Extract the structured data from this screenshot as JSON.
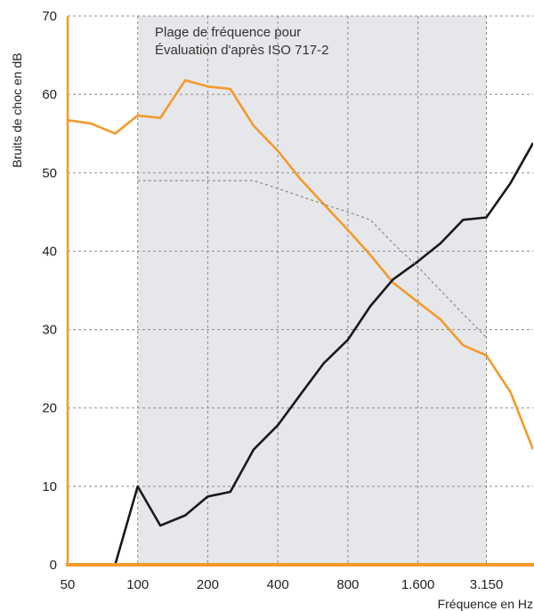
{
  "chart_data": {
    "type": "line",
    "title": "",
    "xlabel": "Fréquence en Hz",
    "ylabel": "Bruits de choc en dB",
    "x_scale": "log",
    "x_ticks": [
      "50",
      "100",
      "200",
      "400",
      "800",
      "1.600",
      "3.150"
    ],
    "x_tick_values": [
      50,
      100,
      200,
      400,
      800,
      1600,
      3150
    ],
    "xlim": [
      50,
      5000
    ],
    "ylim": [
      0,
      70
    ],
    "y_ticks": [
      0,
      10,
      20,
      30,
      40,
      50,
      60,
      70
    ],
    "grid": true,
    "annotation": {
      "line1": "Plage de fréquence pour",
      "line2": "Évaluation d'après ISO 717-2"
    },
    "highlight_range": [
      100,
      3150
    ],
    "colors": {
      "orange": "#F39A2B",
      "black": "#1a1a1a",
      "reference": "#888888",
      "shade": "#E6E7EA",
      "grid": "#8c8c8c"
    },
    "series": [
      {
        "color": "orange",
        "x": [
          50,
          63,
          80,
          100,
          125,
          160,
          200,
          250,
          315,
          400,
          500,
          630,
          800,
          1000,
          1250,
          1600,
          2000,
          2500,
          3150,
          4000,
          5000
        ],
        "values": [
          56.7,
          56.3,
          55.0,
          57.3,
          57.0,
          61.8,
          61.0,
          60.7,
          56.0,
          52.8,
          49.2,
          46.0,
          42.7,
          39.5,
          36.0,
          33.5,
          31.3,
          28.0,
          26.7,
          22.0,
          14.7
        ]
      },
      {
        "color": "black",
        "x": [
          80,
          100,
          125,
          160,
          200,
          250,
          315,
          400,
          500,
          630,
          800,
          1000,
          1250,
          1600,
          2000,
          2500,
          3150,
          4000,
          5000
        ],
        "values": [
          0,
          10.0,
          5.0,
          6.3,
          8.7,
          9.3,
          14.7,
          17.8,
          21.7,
          25.7,
          28.7,
          33.0,
          36.4,
          38.7,
          41.0,
          44.0,
          44.3,
          48.7,
          53.8
        ]
      },
      {
        "color": "reference",
        "dashed": true,
        "x": [
          100,
          125,
          160,
          200,
          250,
          315,
          400,
          500,
          630,
          800,
          1000,
          1250,
          1600,
          2000,
          2500,
          3150
        ],
        "values": [
          49,
          49,
          49,
          49,
          49,
          49,
          48,
          47,
          46,
          45,
          44,
          41,
          38,
          35,
          32,
          29
        ]
      }
    ]
  }
}
